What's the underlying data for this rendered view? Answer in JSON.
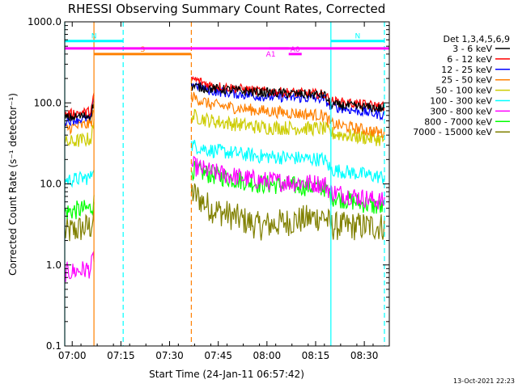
{
  "chart_data": {
    "type": "line",
    "title": "RHESSI Observing Summary Count Rates, Corrected",
    "xlabel": "Start Time (24-Jan-11 06:57:42)",
    "ylabel": "Corrected Count Rate (s⁻¹ detector⁻¹)",
    "yscale": "log",
    "ylim": [
      0.1,
      1000
    ],
    "xlim_minutes": [
      0,
      100
    ],
    "x_ticks": [
      {
        "t": 2.3,
        "label": "07:00"
      },
      {
        "t": 17.3,
        "label": "07:15"
      },
      {
        "t": 32.3,
        "label": "07:30"
      },
      {
        "t": 47.3,
        "label": "07:45"
      },
      {
        "t": 62.3,
        "label": "08:00"
      },
      {
        "t": 77.3,
        "label": "08:15"
      },
      {
        "t": 92.3,
        "label": "08:30"
      }
    ],
    "y_ticks": [
      {
        "v": 0.1,
        "label": "0.1"
      },
      {
        "v": 1,
        "label": "1.0"
      },
      {
        "v": 10,
        "label": "10.0"
      },
      {
        "v": 100,
        "label": "100.0"
      },
      {
        "v": 1000,
        "label": "1000.0"
      }
    ],
    "legend_header": "Det 1,3,4,5,6,9",
    "legend_placement": "right",
    "grid": false,
    "gaps": [
      [
        9,
        39
      ],
      [
        98.5,
        100
      ]
    ],
    "series": [
      {
        "name": "3 - 6 keV",
        "color": "#000000",
        "noise": 0.02,
        "points": [
          [
            0,
            65
          ],
          [
            8,
            70
          ],
          [
            9,
            105
          ],
          [
            39,
            160
          ],
          [
            45,
            150
          ],
          [
            60,
            135
          ],
          [
            80,
            125
          ],
          [
            82,
            95
          ],
          [
            98.5,
            85
          ]
        ]
      },
      {
        "name": "6 - 12 keV",
        "color": "#ff0000",
        "noise": 0.02,
        "points": [
          [
            0,
            72
          ],
          [
            8,
            78
          ],
          [
            9,
            120
          ],
          [
            39,
            200
          ],
          [
            45,
            165
          ],
          [
            60,
            140
          ],
          [
            80,
            128
          ],
          [
            82,
            105
          ],
          [
            98.5,
            90
          ]
        ]
      },
      {
        "name": "12 - 25 keV",
        "color": "#0000ff",
        "noise": 0.02,
        "points": [
          [
            0,
            60
          ],
          [
            8,
            65
          ],
          [
            9,
            110
          ],
          [
            39,
            175
          ],
          [
            45,
            140
          ],
          [
            60,
            120
          ],
          [
            80,
            112
          ],
          [
            82,
            90
          ],
          [
            98.5,
            70
          ]
        ]
      },
      {
        "name": "25 - 50 keV",
        "color": "#ff8000",
        "noise": 0.025,
        "points": [
          [
            0,
            48
          ],
          [
            8,
            55
          ],
          [
            9,
            80
          ],
          [
            39,
            120
          ],
          [
            45,
            95
          ],
          [
            60,
            80
          ],
          [
            80,
            70
          ],
          [
            82,
            55
          ],
          [
            98.5,
            42
          ]
        ]
      },
      {
        "name": "50 - 100 keV",
        "color": "#cccc00",
        "noise": 0.03,
        "points": [
          [
            0,
            32
          ],
          [
            8,
            36
          ],
          [
            9,
            55
          ],
          [
            39,
            70
          ],
          [
            45,
            60
          ],
          [
            60,
            50
          ],
          [
            80,
            48
          ],
          [
            82,
            42
          ],
          [
            98.5,
            35
          ]
        ]
      },
      {
        "name": "100 - 300 keV",
        "color": "#00ffff",
        "noise": 0.03,
        "points": [
          [
            0,
            11
          ],
          [
            8,
            12
          ],
          [
            9,
            18
          ],
          [
            39,
            30
          ],
          [
            45,
            26
          ],
          [
            60,
            22
          ],
          [
            80,
            20
          ],
          [
            82,
            15
          ],
          [
            98.5,
            12
          ]
        ]
      },
      {
        "name": "300 - 800 keV",
        "color": "#ff00ff",
        "noise": 0.04,
        "points": [
          [
            0,
            0.8
          ],
          [
            8,
            0.9
          ],
          [
            9,
            1.3
          ],
          [
            39,
            17
          ],
          [
            45,
            14
          ],
          [
            60,
            11
          ],
          [
            80,
            10
          ],
          [
            82,
            8
          ],
          [
            98.5,
            6
          ]
        ]
      },
      {
        "name": "800 - 7000 keV",
        "color": "#00ff00",
        "noise": 0.04,
        "points": [
          [
            0,
            4.5
          ],
          [
            8,
            5
          ],
          [
            9,
            6
          ],
          [
            39,
            15
          ],
          [
            45,
            13
          ],
          [
            60,
            10
          ],
          [
            80,
            9
          ],
          [
            82,
            7
          ],
          [
            98.5,
            5
          ]
        ]
      },
      {
        "name": "7000 - 15000 keV",
        "color": "#808000",
        "noise": 0.06,
        "points": [
          [
            0,
            2.5
          ],
          [
            8,
            3
          ],
          [
            9,
            4
          ],
          [
            39,
            8
          ],
          [
            45,
            5
          ],
          [
            60,
            3
          ],
          [
            80,
            4
          ],
          [
            82,
            3
          ],
          [
            98.5,
            3
          ]
        ]
      }
    ],
    "vertical_markers": [
      {
        "t": 0,
        "color": "#00ffff",
        "style": "solid"
      },
      {
        "t": 9,
        "color": "#ff8000",
        "style": "solid"
      },
      {
        "t": 18,
        "color": "#00ffff",
        "style": "dashed"
      },
      {
        "t": 39,
        "color": "#ff8000",
        "style": "dashed"
      },
      {
        "t": 82,
        "color": "#00ffff",
        "style": "solid"
      },
      {
        "t": 98.5,
        "color": "#00ffff",
        "style": "dashed"
      }
    ],
    "flag_bars": [
      {
        "label": "S",
        "color": "#ff8000",
        "t0": 9,
        "t1": 39,
        "y": 400
      },
      {
        "label": "N",
        "color": "#00ffff",
        "t0": 0,
        "t1": 18,
        "y": 580
      },
      {
        "label": "N",
        "color": "#00ffff",
        "t0": 82,
        "t1": 98.5,
        "y": 580
      },
      {
        "label": "",
        "color": "#ff00ff",
        "t0": 0,
        "t1": 100,
        "y": 470
      },
      {
        "label": "A0",
        "color": "#ff00ff",
        "t0": 69,
        "t1": 73,
        "y": 400
      },
      {
        "label": "A1",
        "color": "#ff00ff",
        "t0": 63,
        "t1": 69,
        "y": 470
      }
    ]
  },
  "timestamp": "13-Oct-2021 22:23"
}
